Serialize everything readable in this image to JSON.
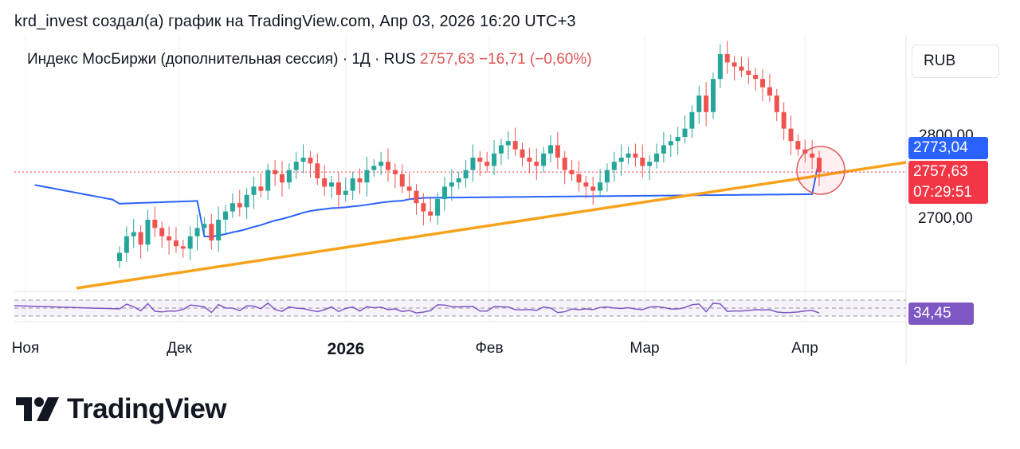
{
  "header": {
    "text": "krd_invest создал(а) график на TradingView.com, Апр 03, 2026 16:20 UTC+3"
  },
  "legend": {
    "symbol": "Индекс МосБиржи (дополнительная сессия)",
    "sep1": "·",
    "interval": "1Д",
    "sep2": "·",
    "exchange": "RUS",
    "price": "2757,63",
    "change": "−16,71 (−0,60%)"
  },
  "currency_button": "RUB",
  "price_axis": {
    "tick_2800": "2800,00",
    "tick_2700": "2700,00",
    "ma_label": "2773,04",
    "price_label": "2757,63",
    "countdown": "07:29:51",
    "rsi_label": "34,45"
  },
  "colors": {
    "up": "#26a69a",
    "down": "#ef5350",
    "ma": "#2962ff",
    "trendline": "#f7a21b",
    "rsi": "#7e57c2",
    "price_label": "#f23645",
    "ma_label": "#2962ff"
  },
  "time_axis": [
    "Ноя",
    "Дек",
    "2026",
    "Фев",
    "Мар",
    "Апр"
  ],
  "brand": "TradingView",
  "chart_data": {
    "type": "candlestick",
    "title": "Индекс МосБиржи (дополнительная сессия) · 1Д · RUS",
    "currency": "RUB",
    "y_ticks": [
      2700,
      2800
    ],
    "last_price": 2757.63,
    "change": -16.71,
    "change_pct": -0.6,
    "ma_value": 2773.04,
    "rsi_value": 34.45,
    "x_labels": [
      "Ноя",
      "Дек",
      "2026",
      "Фев",
      "Мар",
      "Апр"
    ],
    "closes_approx": [
      2660,
      2680,
      2685,
      2670,
      2700,
      2690,
      2680,
      2675,
      2668,
      2665,
      2680,
      2690,
      2695,
      2675,
      2700,
      2710,
      2720,
      2715,
      2730,
      2740,
      2735,
      2760,
      2755,
      2745,
      2760,
      2770,
      2775,
      2768,
      2750,
      2740,
      2745,
      2730,
      2735,
      2750,
      2745,
      2760,
      2765,
      2770,
      2760,
      2755,
      2740,
      2735,
      2720,
      2710,
      2705,
      2725,
      2740,
      2745,
      2750,
      2760,
      2775,
      2770,
      2765,
      2780,
      2790,
      2795,
      2785,
      2775,
      2770,
      2765,
      2780,
      2790,
      2775,
      2760,
      2755,
      2745,
      2740,
      2735,
      2745,
      2760,
      2770,
      2775,
      2780,
      2775,
      2765,
      2770,
      2780,
      2790,
      2795,
      2800,
      2810,
      2830,
      2850,
      2830,
      2870,
      2900,
      2890,
      2885,
      2880,
      2875,
      2870,
      2860,
      2850,
      2830,
      2810,
      2795,
      2785,
      2780,
      2775,
      2757.63
    ],
    "moving_average": {
      "type": "MA",
      "last": 2773.04
    },
    "trendline": {
      "from_value": 2640,
      "to_value": 2770
    },
    "rsi": {
      "last": 34.45,
      "levels": [
        30,
        50,
        70
      ]
    }
  }
}
